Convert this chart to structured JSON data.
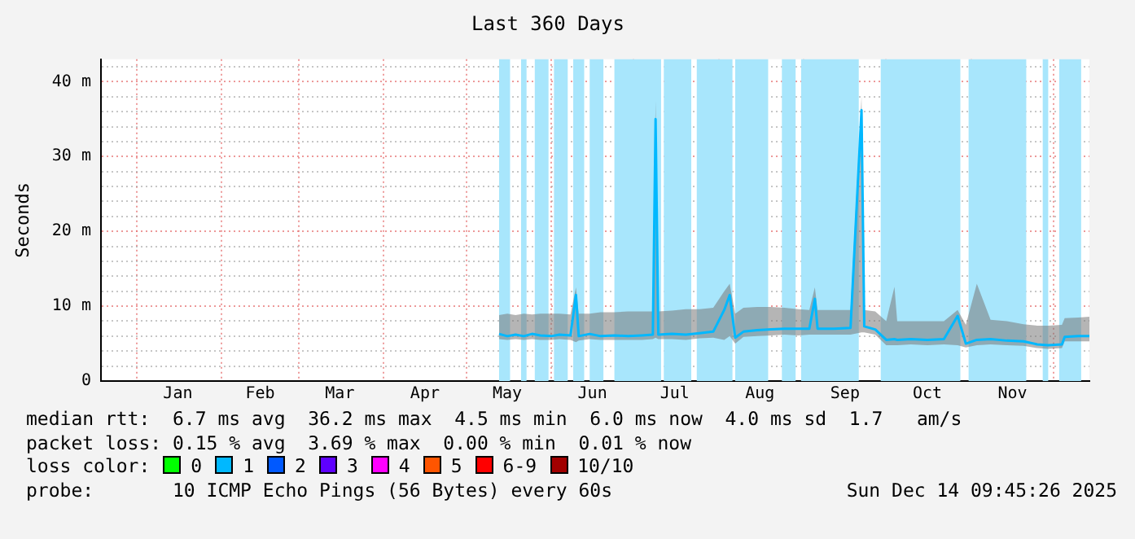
{
  "chart_data": {
    "type": "line",
    "title": "Last 360 Days",
    "ylabel": "Seconds",
    "legend": "bottom",
    "grid": true,
    "marker": "none",
    "line_style": "solid",
    "xlim": [
      "2024-12-19",
      "2025-12-14"
    ],
    "xticks": [
      {
        "value": "2025-01-01",
        "label": null
      },
      {
        "value": "2025-01-16",
        "label": "Jan"
      },
      {
        "value": "2025-02-01",
        "label": null
      },
      {
        "value": "2025-02-15",
        "label": "Feb"
      },
      {
        "value": "2025-03-01",
        "label": null
      },
      {
        "value": "2025-03-16",
        "label": "Mar"
      },
      {
        "value": "2025-04-01",
        "label": null
      },
      {
        "value": "2025-04-16",
        "label": "Apr"
      },
      {
        "value": "2025-05-01",
        "label": null
      },
      {
        "value": "2025-05-16",
        "label": "May"
      },
      {
        "value": "2025-06-01",
        "label": null
      },
      {
        "value": "2025-06-16",
        "label": "Jun"
      },
      {
        "value": "2025-07-01",
        "label": null
      },
      {
        "value": "2025-07-16",
        "label": "Jul"
      },
      {
        "value": "2025-08-01",
        "label": null
      },
      {
        "value": "2025-08-16",
        "label": "Aug"
      },
      {
        "value": "2025-09-01",
        "label": null
      },
      {
        "value": "2025-09-16",
        "label": "Sep"
      },
      {
        "value": "2025-10-01",
        "label": null
      },
      {
        "value": "2025-10-16",
        "label": "Oct"
      },
      {
        "value": "2025-11-01",
        "label": null
      },
      {
        "value": "2025-11-16",
        "label": "Nov"
      },
      {
        "value": "2025-12-01",
        "label": null
      }
    ],
    "ylim": [
      0,
      43
    ],
    "yticks": [
      0,
      {
        "value": 2,
        "label": null
      },
      {
        "value": 4,
        "label": null
      },
      {
        "value": 6,
        "label": null
      },
      {
        "value": 8,
        "label": null
      },
      {
        "value": 10,
        "label": "10 m"
      },
      {
        "value": 12,
        "label": null
      },
      {
        "value": 14,
        "label": null
      },
      {
        "value": 16,
        "label": null
      },
      {
        "value": 18,
        "label": null
      },
      {
        "value": 20,
        "label": "20 m"
      },
      {
        "value": 22,
        "label": null
      },
      {
        "value": 24,
        "label": null
      },
      {
        "value": 26,
        "label": null
      },
      {
        "value": 28,
        "label": null
      },
      {
        "value": 30,
        "label": "30 m"
      },
      {
        "value": 32,
        "label": null
      },
      {
        "value": 34,
        "label": null
      },
      {
        "value": 36,
        "label": null
      },
      {
        "value": 38,
        "label": null
      },
      {
        "value": 40,
        "label": "40 m"
      },
      {
        "value": 42,
        "label": null
      }
    ],
    "bands": [
      {
        "axis": "x",
        "from": "2025-05-13",
        "to": "2025-05-17",
        "color": "#a8e6fc"
      },
      {
        "axis": "x",
        "from": "2025-05-21",
        "to": "2025-05-23",
        "color": "#a8e6fc"
      },
      {
        "axis": "x",
        "from": "2025-05-26",
        "to": "2025-05-31",
        "color": "#a8e6fc"
      },
      {
        "axis": "x",
        "from": "2025-06-02",
        "to": "2025-06-07",
        "color": "#a8e6fc"
      },
      {
        "axis": "x",
        "from": "2025-06-09",
        "to": "2025-06-13",
        "color": "#a8e6fc"
      },
      {
        "axis": "x",
        "from": "2025-06-15",
        "to": "2025-06-20",
        "color": "#a8e6fc"
      },
      {
        "axis": "x",
        "from": "2025-06-24",
        "to": "2025-07-11",
        "color": "#a8e6fc"
      },
      {
        "axis": "x",
        "from": "2025-07-12",
        "to": "2025-07-22",
        "color": "#a8e6fc"
      },
      {
        "axis": "x",
        "from": "2025-07-24",
        "to": "2025-08-06",
        "color": "#a8e6fc"
      },
      {
        "axis": "x",
        "from": "2025-08-07",
        "to": "2025-08-19",
        "color": "#a8e6fc"
      },
      {
        "axis": "x",
        "from": "2025-08-24",
        "to": "2025-08-29",
        "color": "#a8e6fc"
      },
      {
        "axis": "x",
        "from": "2025-08-31",
        "to": "2025-09-21",
        "color": "#a8e6fc"
      },
      {
        "axis": "x",
        "from": "2025-09-29",
        "to": "2025-10-28",
        "color": "#a8e6fc"
      },
      {
        "axis": "x",
        "from": "2025-10-31",
        "to": "2025-11-21",
        "color": "#a8e6fc"
      },
      {
        "axis": "x",
        "from": "2025-11-27",
        "to": "2025-11-29",
        "color": "#a8e6fc"
      },
      {
        "axis": "x",
        "from": "2025-12-03",
        "to": "2025-12-11",
        "color": "#a8e6fc"
      }
    ],
    "series": [
      {
        "color": "#00b8ff",
        "x": [
          "2025-05-13",
          "2025-05-16",
          "2025-05-19",
          "2025-05-22",
          "2025-05-25",
          "2025-05-28",
          "2025-06-01",
          "2025-06-04",
          "2025-06-08",
          "2025-06-10",
          "2025-06-11",
          "2025-06-15",
          "2025-06-19",
          "2025-06-24",
          "2025-06-29",
          "2025-07-04",
          "2025-07-08",
          "2025-07-09",
          "2025-07-10",
          "2025-07-15",
          "2025-07-20",
          "2025-07-25",
          "2025-07-30",
          "2025-08-03",
          "2025-08-05",
          "2025-08-07",
          "2025-08-10",
          "2025-08-15",
          "2025-08-20",
          "2025-08-25",
          "2025-08-30",
          "2025-09-03",
          "2025-09-05",
          "2025-09-06",
          "2025-09-12",
          "2025-09-18",
          "2025-09-22",
          "2025-09-23",
          "2025-09-27",
          "2025-10-01",
          "2025-10-04",
          "2025-10-05",
          "2025-10-10",
          "2025-10-16",
          "2025-10-22",
          "2025-10-27",
          "2025-10-30",
          "2025-11-03",
          "2025-11-08",
          "2025-11-14",
          "2025-11-20",
          "2025-11-25",
          "2025-11-29",
          "2025-12-04",
          "2025-12-05",
          "2025-12-10",
          "2025-12-14"
        ],
        "values": [
          6.3,
          6.0,
          6.2,
          6.0,
          6.3,
          6.1,
          6.0,
          6.2,
          6.1,
          11.5,
          6.0,
          6.3,
          6.0,
          6.1,
          6.0,
          6.1,
          6.2,
          35,
          6.2,
          6.3,
          6.2,
          6.4,
          6.6,
          9.5,
          11.5,
          5.8,
          6.6,
          6.8,
          6.9,
          7.0,
          7.0,
          7.0,
          11,
          7.0,
          7.0,
          7.1,
          36.2,
          7.3,
          6.9,
          5.5,
          5.6,
          5.5,
          5.6,
          5.5,
          5.6,
          8.7,
          5.0,
          5.5,
          5.6,
          5.4,
          5.3,
          4.9,
          4.8,
          4.9,
          5.9,
          6.0,
          6.0
        ],
        "lower": [
          5.6,
          5.5,
          5.6,
          5.5,
          5.6,
          5.5,
          5.5,
          5.6,
          5.5,
          5.2,
          5.4,
          5.6,
          5.5,
          5.5,
          5.5,
          5.5,
          5.6,
          5.8,
          5.6,
          5.6,
          5.5,
          5.7,
          5.8,
          5.5,
          6.0,
          5.0,
          5.9,
          6.0,
          6.1,
          6.2,
          6.1,
          6.2,
          6.2,
          6.2,
          6.2,
          6.2,
          6.5,
          6.5,
          6.2,
          4.8,
          4.8,
          4.8,
          4.9,
          4.8,
          4.9,
          4.8,
          4.5,
          4.8,
          4.9,
          4.8,
          4.7,
          4.4,
          4.3,
          4.4,
          5.3,
          5.3,
          5.3
        ],
        "upper": [
          8.8,
          9.0,
          8.8,
          9.0,
          8.9,
          9.0,
          9.0,
          9.0,
          8.9,
          12.5,
          9.0,
          9.0,
          9.2,
          9.2,
          9.3,
          9.3,
          9.3,
          37.5,
          9.3,
          9.4,
          9.6,
          9.6,
          9.8,
          12.0,
          13.0,
          9.0,
          9.8,
          9.9,
          9.9,
          9.8,
          9.6,
          9.5,
          12.5,
          9.5,
          9.5,
          9.5,
          38.0,
          9.5,
          9.3,
          8.0,
          12.6,
          8.0,
          8.0,
          8.0,
          8.0,
          9.5,
          7.5,
          13.0,
          8.2,
          8.0,
          7.6,
          7.4,
          7.4,
          7.5,
          8.4,
          8.5,
          8.6
        ]
      },
      {
        "name": "0",
        "color": "#00ff00"
      },
      {
        "name": "1",
        "color": "#00b8ff"
      },
      {
        "name": "2",
        "color": "#0059ff"
      },
      {
        "name": "3",
        "color": "#5e00ff"
      },
      {
        "name": "4",
        "color": "#ff00ff"
      },
      {
        "name": "5",
        "color": "#ff5500"
      },
      {
        "name": "6-9",
        "color": "#ff0000"
      },
      {
        "name": "10/10",
        "color": "#a10000"
      }
    ],
    "annotations": [
      "median rtt:  6.7 ms avg  36.2 ms max  4.5 ms min  6.0 ms now  4.0 ms sd  1.7   am/s",
      "packet loss: 0.15 % avg  3.69 % max  0.00 % min  0.01 % now",
      "loss color:",
      "probe:       10 ICMP Echo Pings (56 Bytes) every 60s",
      "Sun Dec 14 09:45:26 2025"
    ]
  }
}
